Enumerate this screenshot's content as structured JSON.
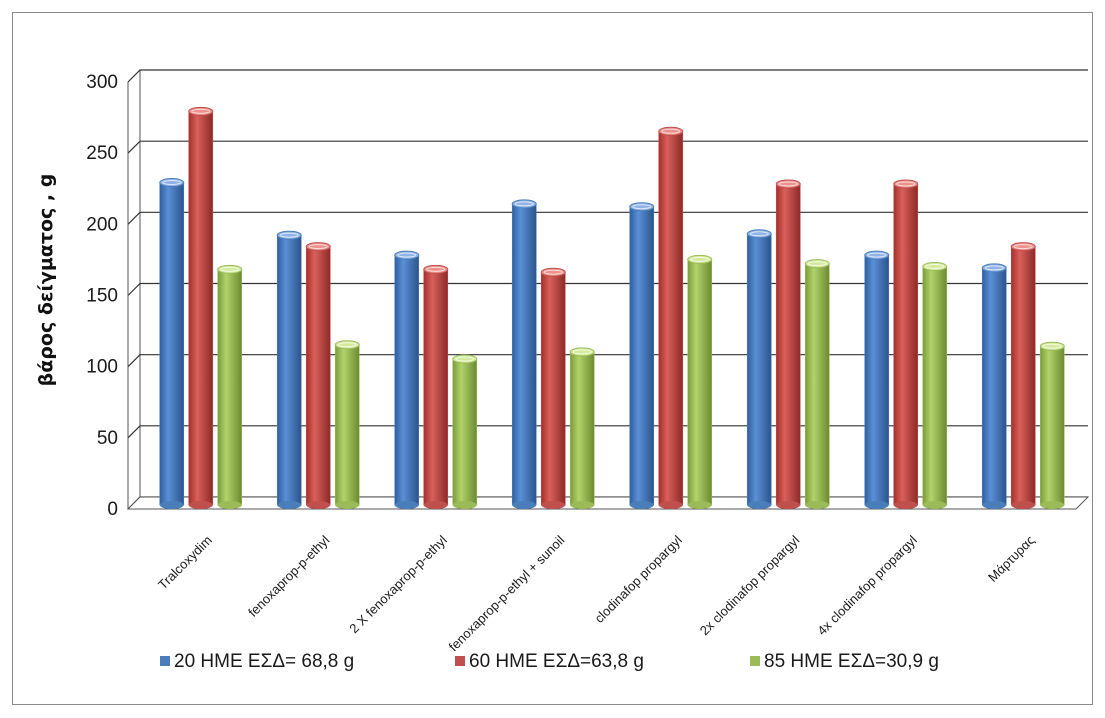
{
  "chart_data": {
    "type": "bar",
    "ylabel": "βάρος δείγματος , g",
    "xlabel": "",
    "ylim": [
      0,
      300
    ],
    "yticks": [
      0,
      50,
      100,
      150,
      200,
      250,
      300
    ],
    "grid": true,
    "legend_position": "bottom",
    "categories": [
      "Tralcoxydim",
      "fenoxaprop-p-ethyl",
      "2 X fenoxaprop-p-ethyl",
      "fenoxaprop-p-ethyl + sunoil",
      "clodinafop propargyl",
      "2x clodinafop propargyl",
      "4x clodinafop propargyl",
      "Μάρτυρας"
    ],
    "series": [
      {
        "name": "20 ΗΜΕ  ΕΣΔ= 68,8 g",
        "color": "#4a7ebb",
        "values": [
          226,
          189,
          175,
          211,
          209,
          190,
          175,
          166
        ]
      },
      {
        "name": "60 ΗΜΕ ΕΣΔ=63,8 g",
        "color": "#c0504d",
        "values": [
          276,
          181,
          165,
          163,
          262,
          225,
          225,
          181
        ]
      },
      {
        "name": "85 ΗΜΕ ΕΣΔ=30,9 g",
        "color": "#9bbb59",
        "values": [
          165,
          112,
          102,
          107,
          172,
          169,
          167,
          111
        ]
      }
    ]
  }
}
